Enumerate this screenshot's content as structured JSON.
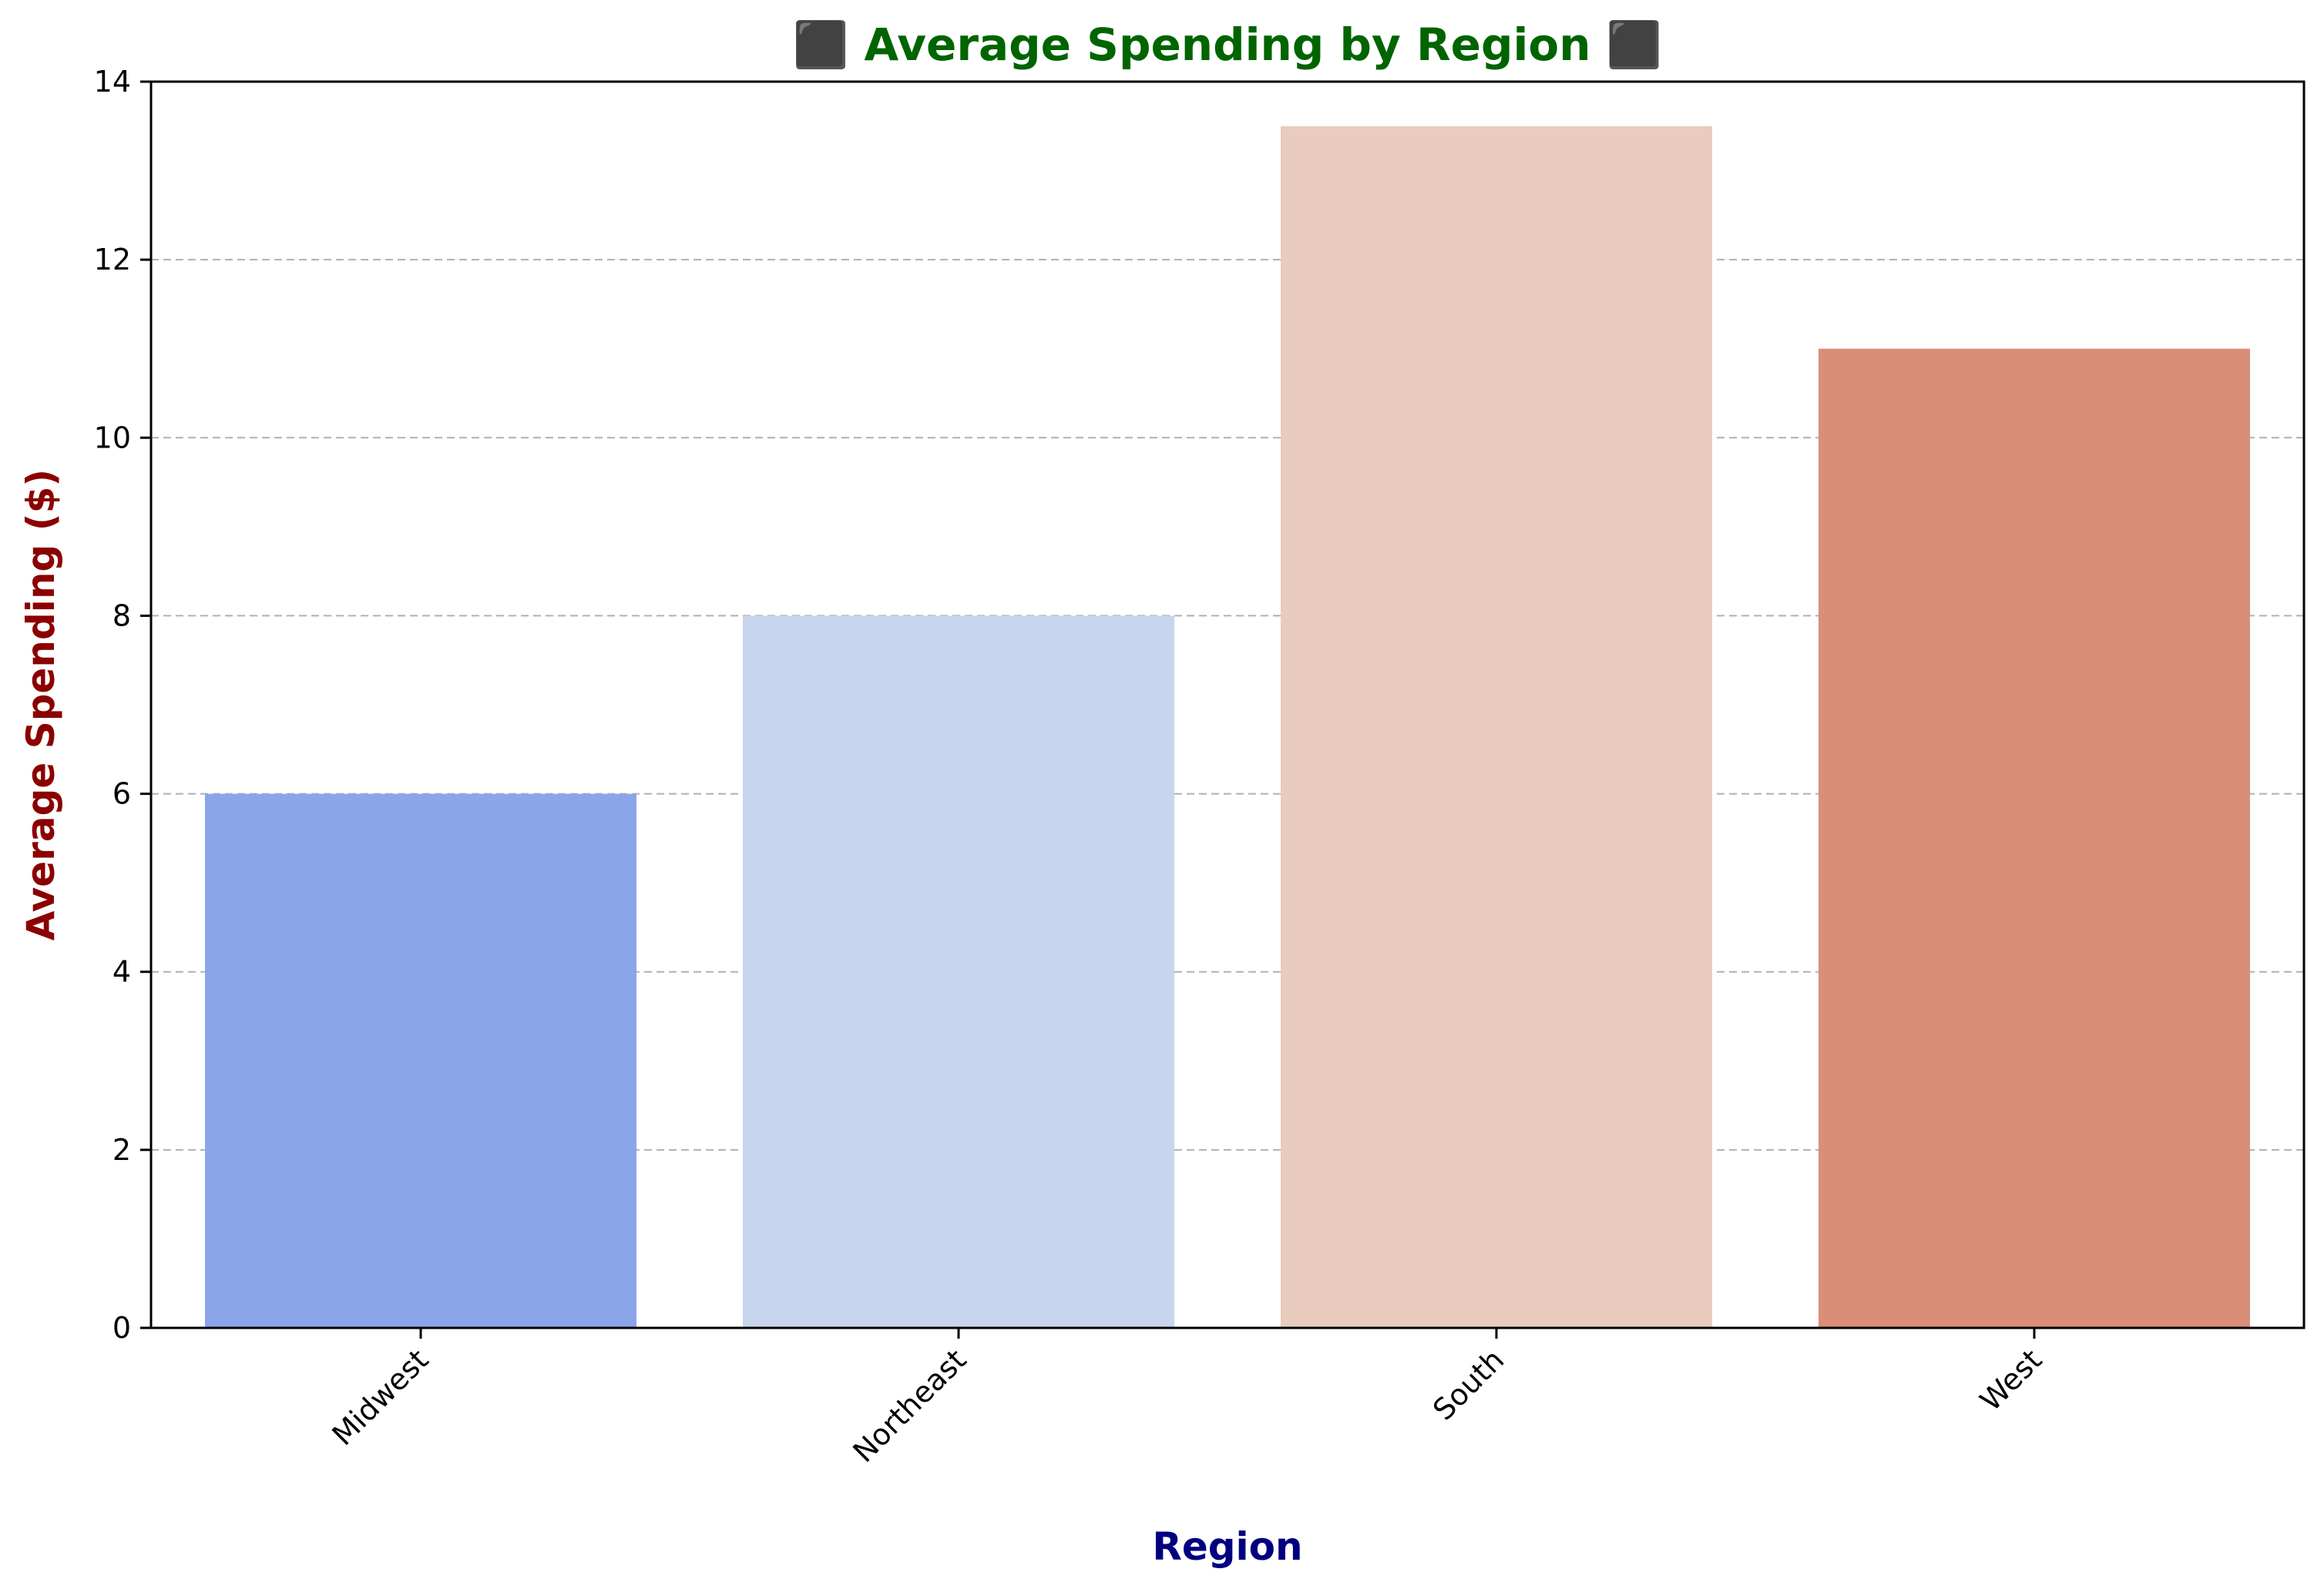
{
  "chart_data": {
    "type": "bar",
    "title": "⬛ Average Spending by Region ⬛",
    "xlabel": "Region",
    "ylabel": "Average Spending ($)",
    "categories": [
      "Midwest",
      "Northeast",
      "South",
      "West"
    ],
    "values": [
      6,
      8,
      13.5,
      11
    ],
    "ylim": [
      0,
      14
    ],
    "yticks": [
      0,
      2,
      4,
      6,
      8,
      10,
      12,
      14
    ],
    "grid": "y-dashed",
    "colors": [
      "#8aa5e8",
      "#c7d5ee",
      "#e9ccbe",
      "#da8e78"
    ],
    "title_color": "#006400",
    "xlabel_color": "#000080",
    "ylabel_color": "#8b0000"
  }
}
